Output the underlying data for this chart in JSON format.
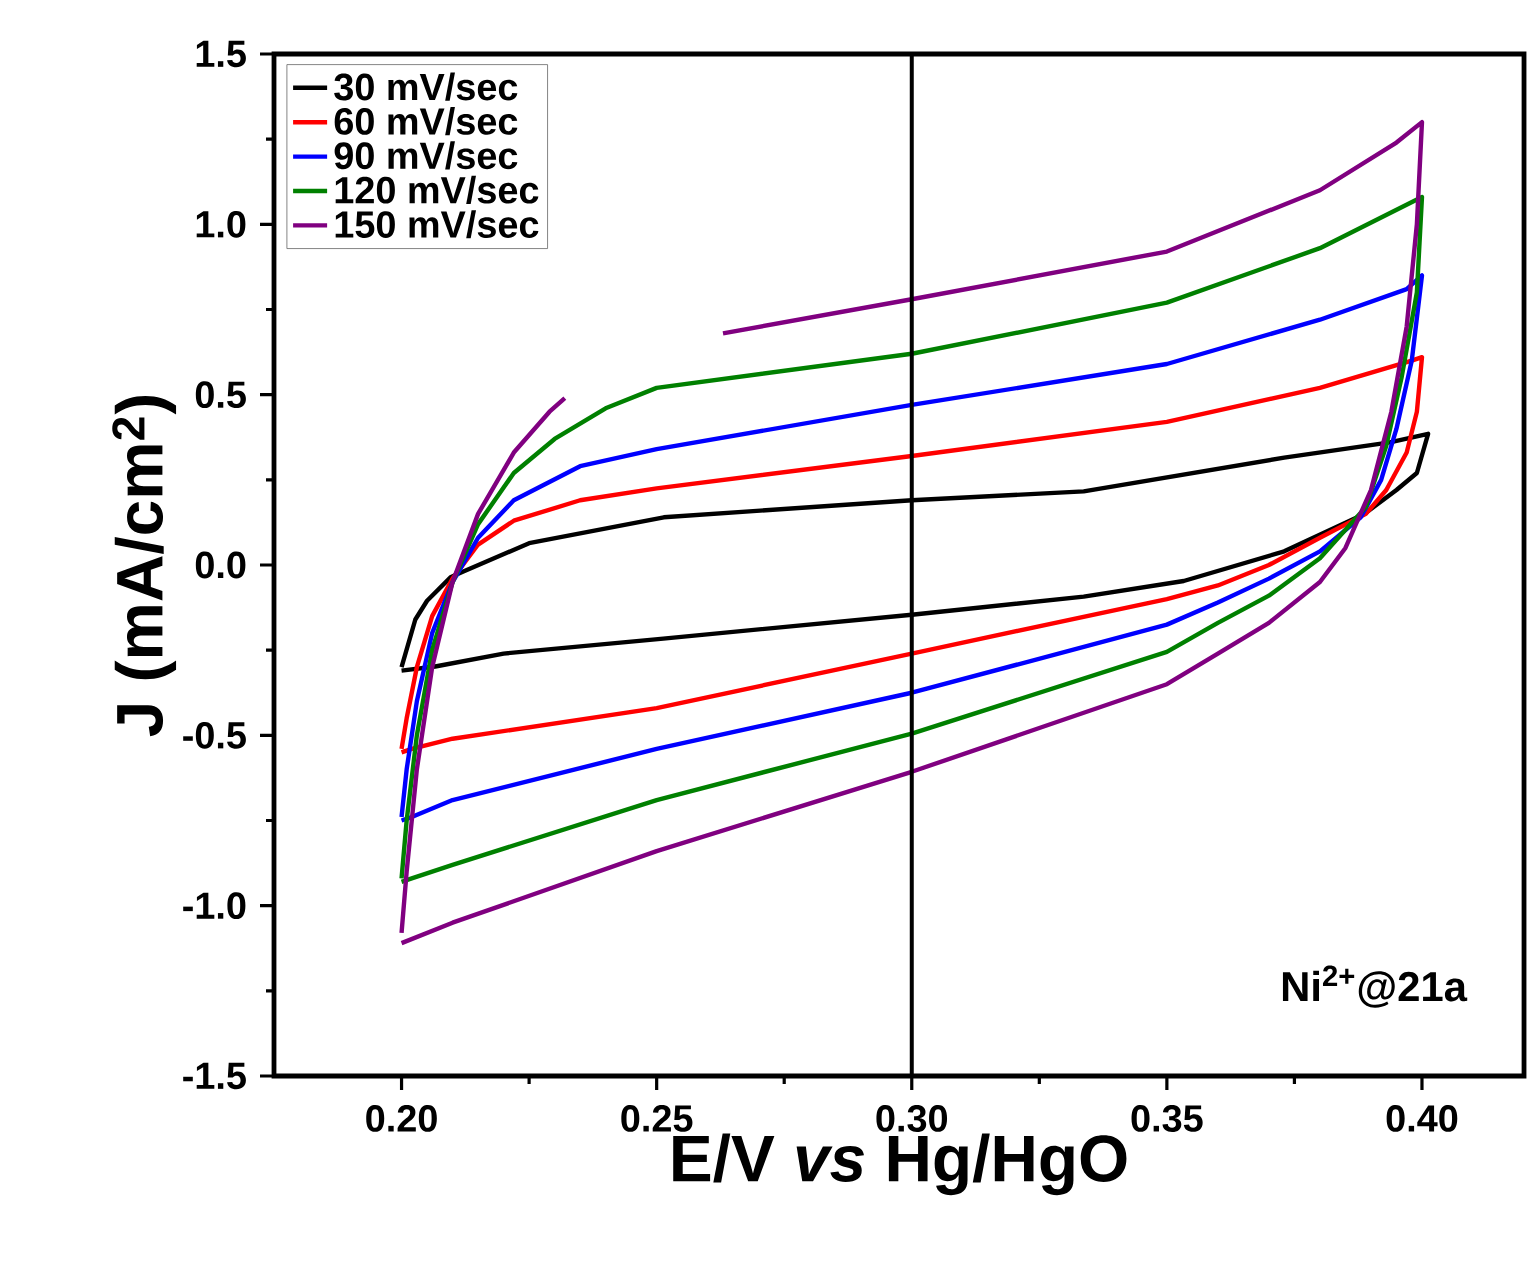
{
  "chart_data": {
    "type": "line",
    "xlabel": "E/V *vs* Hg/HgO",
    "ylabel": "J (mA/cm$^{2}$)",
    "xlim": [
      0.175,
      0.42
    ],
    "ylim": [
      -1.5,
      1.5
    ],
    "xticks": [
      {
        "value": 0.2,
        "label": "0.20"
      },
      {
        "value": 0.25,
        "label": "0.25"
      },
      {
        "value": 0.3,
        "label": "0.30"
      },
      {
        "value": 0.35,
        "label": "0.35"
      },
      {
        "value": 0.4,
        "label": "0.40"
      }
    ],
    "yticks": [
      {
        "value": -1.5,
        "label": "-1.5"
      },
      {
        "value": -1.0,
        "label": "-1.0"
      },
      {
        "value": -0.5,
        "label": "-0.5"
      },
      {
        "value": 0,
        "label": "0.0"
      },
      {
        "value": 0.5,
        "label": "0.5"
      },
      {
        "value": 1.0,
        "label": "1.0"
      },
      {
        "value": 1.5,
        "label": "1.5"
      }
    ],
    "legend": "top left",
    "ref_lines": [
      {
        "axis": "x",
        "value": 0.3,
        "color": "#000000"
      }
    ],
    "annotations": [
      "Ni$^{2+}$@21a"
    ],
    "series": [
      {
        "name": "30 mV/sec",
        "color": "#000000",
        "x": [
          0.2,
          0.2027,
          0.205,
          0.2097,
          0.212,
          0.225,
          0.2514,
          0.3,
          0.3337,
          0.373,
          0.3937,
          0.4012,
          0.399,
          0.395,
          0.3887,
          0.373,
          0.3533,
          0.3337,
          0.3,
          0.2513,
          0.22,
          0.2066,
          0.2
        ],
        "values": [
          -0.3,
          -0.16,
          -0.105,
          -0.035,
          -0.02,
          0.064,
          0.14,
          0.19,
          0.216,
          0.315,
          0.36,
          0.385,
          0.27,
          0.22,
          0.15,
          0.04,
          -0.047,
          -0.093,
          -0.146,
          -0.216,
          -0.26,
          -0.298,
          -0.31
        ]
      },
      {
        "name": "60 mV/sec",
        "color": "#ff0000",
        "x": [
          0.2,
          0.201,
          0.203,
          0.206,
          0.21,
          0.215,
          0.222,
          0.235,
          0.25,
          0.3,
          0.35,
          0.38,
          0.398,
          0.4,
          0.399,
          0.397,
          0.393,
          0.389,
          0.38,
          0.37,
          0.36,
          0.35,
          0.3,
          0.25,
          0.21,
          0.202,
          0.2
        ],
        "values": [
          -0.54,
          -0.45,
          -0.3,
          -0.15,
          -0.04,
          0.06,
          0.13,
          0.19,
          0.225,
          0.32,
          0.42,
          0.52,
          0.6,
          0.61,
          0.45,
          0.33,
          0.22,
          0.15,
          0.08,
          0.0,
          -0.06,
          -0.1,
          -0.26,
          -0.42,
          -0.51,
          -0.54,
          -0.55
        ]
      },
      {
        "name": "90 mV/sec",
        "color": "#0000ff",
        "x": [
          0.2,
          0.201,
          0.203,
          0.206,
          0.21,
          0.215,
          0.222,
          0.235,
          0.25,
          0.3,
          0.35,
          0.38,
          0.397,
          0.4,
          0.398,
          0.395,
          0.392,
          0.388,
          0.38,
          0.37,
          0.36,
          0.35,
          0.3,
          0.25,
          0.21,
          0.202,
          0.2
        ],
        "values": [
          -0.74,
          -0.6,
          -0.4,
          -0.2,
          -0.05,
          0.08,
          0.19,
          0.29,
          0.34,
          0.47,
          0.59,
          0.72,
          0.81,
          0.85,
          0.6,
          0.4,
          0.25,
          0.14,
          0.04,
          -0.04,
          -0.11,
          -0.175,
          -0.375,
          -0.54,
          -0.69,
          -0.74,
          -0.75
        ]
      },
      {
        "name": "120 mV/sec",
        "color": "#008000",
        "x": [
          0.2,
          0.201,
          0.203,
          0.206,
          0.21,
          0.215,
          0.222,
          0.23,
          0.24,
          0.25,
          0.3,
          0.35,
          0.38,
          0.396,
          0.4,
          0.399,
          0.396,
          0.393,
          0.389,
          0.38,
          0.37,
          0.36,
          0.35,
          0.3,
          0.25,
          0.21,
          0.202,
          0.2
        ],
        "values": [
          -0.92,
          -0.75,
          -0.5,
          -0.25,
          -0.05,
          0.12,
          0.27,
          0.37,
          0.46,
          0.52,
          0.62,
          0.77,
          0.93,
          1.05,
          1.08,
          0.8,
          0.55,
          0.35,
          0.17,
          0.02,
          -0.09,
          -0.17,
          -0.255,
          -0.495,
          -0.69,
          -0.88,
          -0.92,
          -0.93
        ]
      },
      {
        "name": "150 mV/sec",
        "color": "#800080",
        "x": [
          0.2,
          0.201,
          0.203,
          0.206,
          0.21,
          0.215,
          0.222,
          0.229,
          0.232,
          0.25,
          0.263,
          0.3,
          0.35,
          0.38,
          0.395,
          0.4,
          0.399,
          0.397,
          0.394,
          0.39,
          0.385,
          0.38,
          0.37,
          0.36,
          0.35,
          0.3,
          0.25,
          0.21,
          0.2
        ],
        "values": [
          -1.08,
          -0.9,
          -0.6,
          -0.3,
          -0.05,
          0.15,
          0.33,
          0.45,
          0.49,
          null,
          0.68,
          0.78,
          0.92,
          1.1,
          1.24,
          1.3,
          1.0,
          0.7,
          0.45,
          0.22,
          0.05,
          -0.05,
          -0.17,
          -0.26,
          -0.35,
          -0.607,
          -0.84,
          -1.05,
          -1.11
        ]
      }
    ]
  }
}
